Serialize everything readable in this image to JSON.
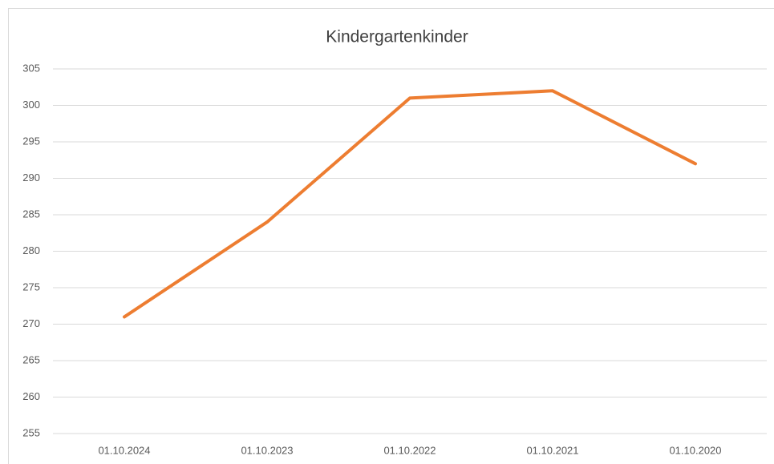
{
  "chart_data": {
    "type": "line",
    "title": "Kindergartenkinder",
    "categories": [
      "01.10.2024",
      "01.10.2023",
      "01.10.2022",
      "01.10.2021",
      "01.10.2020"
    ],
    "values": [
      271,
      284,
      301,
      302,
      292
    ],
    "color": "#ed7d31",
    "ylim": [
      255,
      305
    ],
    "yticks": [
      255,
      260,
      265,
      270,
      275,
      280,
      285,
      290,
      295,
      300,
      305
    ],
    "grid": true
  }
}
